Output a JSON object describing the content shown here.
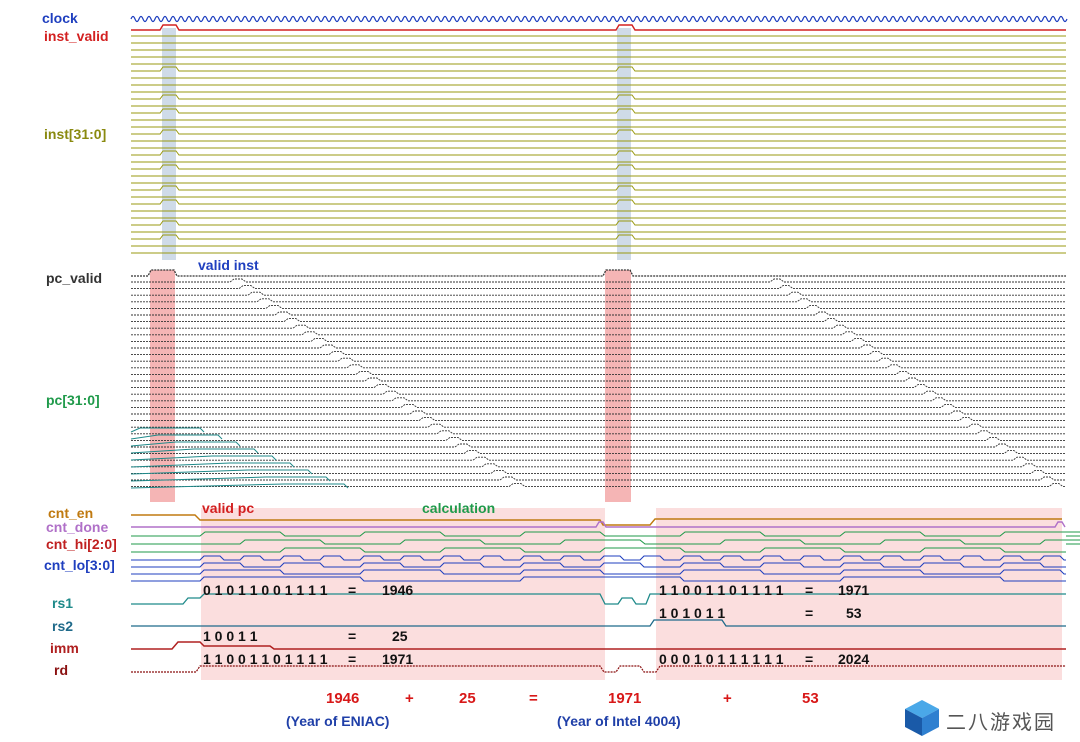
{
  "signals": {
    "clock": "clock",
    "inst_valid": "inst_valid",
    "inst": "inst[31:0]",
    "pc_valid": "pc_valid",
    "pc": "pc[31:0]",
    "cnt_en": "cnt_en",
    "cnt_done": "cnt_done",
    "cnt_hi": "cnt_hi[2:0]",
    "cnt_lo": "cnt_lo[3:0]",
    "rs1": "rs1",
    "rs2": "rs2",
    "imm": "imm",
    "rd": "rd"
  },
  "annotations": {
    "valid_inst": "valid inst",
    "valid_pc": "valid pc",
    "calculation": "calculation"
  },
  "values": {
    "rs1_a_bits": "0 1 0 1 1 0 0 1 1 1 1",
    "rs1_a_eq": "=",
    "rs1_a_dec": "1946",
    "imm_bits": "1 0 0 1 1",
    "imm_eq": "=",
    "imm_dec": "25",
    "rd_a_bits": "1 1 0 0 1 1 0 1 1 1 1",
    "rd_a_eq": "=",
    "rd_a_dec": "1971",
    "rs1_b_bits": "1 1 0 0 1 1 0 1 1 1 1",
    "rs1_b_eq": "=",
    "rs1_b_dec": "1971",
    "rs2_b_bits": "1 0 1 0 1 1",
    "rs2_b_eq": "=",
    "rs2_b_dec": "53",
    "rd_b_bits": "0 0 0 1 0 1 1 1 1 1 1",
    "rd_b_eq": "=",
    "rd_b_dec": "2024"
  },
  "equation": {
    "a": "1946",
    "plus1": "+",
    "b": "25",
    "equals": "=",
    "c": "1971",
    "plus2": "+",
    "d": "53",
    "note_a": "(Year of ENIAC)",
    "note_c": "(Year of Intel 4004)"
  },
  "watermark": {
    "text": "二八游戏园"
  },
  "colors": {
    "clock": "#1f3fbf",
    "inst_valid": "#d32020",
    "inst": "#8a8a10",
    "pc_valid": "#333333",
    "pc": "#1f9a4a",
    "cnt_en": "#c07a10",
    "cnt_done": "#b070c8",
    "cnt_hi": "#c02020",
    "cnt_lo": "#1f3fbf",
    "rs1": "#1f8a8a",
    "rs2": "#1f6a8a",
    "imm": "#b02020",
    "rd": "#8a1010",
    "bus_inst": "#9a9a10",
    "bus_pc": "#333333",
    "bus_pc_edge": "#1f8a8a",
    "pink_highlight": "#fbdede",
    "blue_highlight": "#cfdbe8",
    "red_highlight": "#f5b5b5",
    "eq_red": "#d81818",
    "eq_blue": "#1f3fa8"
  }
}
